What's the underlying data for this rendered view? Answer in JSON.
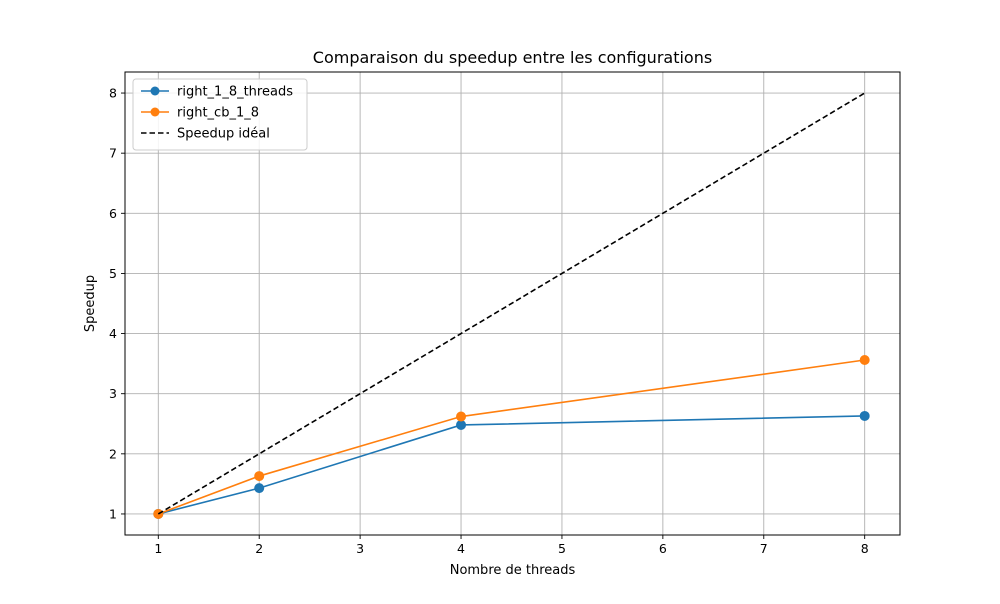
{
  "chart_data": {
    "type": "line",
    "title": "Comparaison du speedup entre les configurations",
    "xlabel": "Nombre de threads",
    "ylabel": "Speedup",
    "xlim": [
      0.67,
      8.35
    ],
    "ylim": [
      0.65,
      8.35
    ],
    "xticks": [
      1,
      2,
      3,
      4,
      5,
      6,
      7,
      8
    ],
    "yticks": [
      1,
      2,
      3,
      4,
      5,
      6,
      7,
      8
    ],
    "grid": true,
    "legend_position": "top-left",
    "series": [
      {
        "name": "right_1_8_threads",
        "color": "#1f77b4",
        "style": "solid",
        "marker": "circle",
        "x": [
          1,
          2,
          4,
          8
        ],
        "y": [
          1.0,
          1.43,
          2.48,
          2.63
        ]
      },
      {
        "name": "right_cb_1_8",
        "color": "#ff7f0e",
        "style": "solid",
        "marker": "circle",
        "x": [
          1,
          2,
          4,
          8
        ],
        "y": [
          1.0,
          1.63,
          2.62,
          3.56
        ]
      },
      {
        "name": "Speedup idéal",
        "color": "#000000",
        "style": "dashed",
        "marker": "none",
        "x": [
          1,
          2,
          4,
          8
        ],
        "y": [
          1,
          2,
          4,
          8
        ]
      }
    ]
  }
}
